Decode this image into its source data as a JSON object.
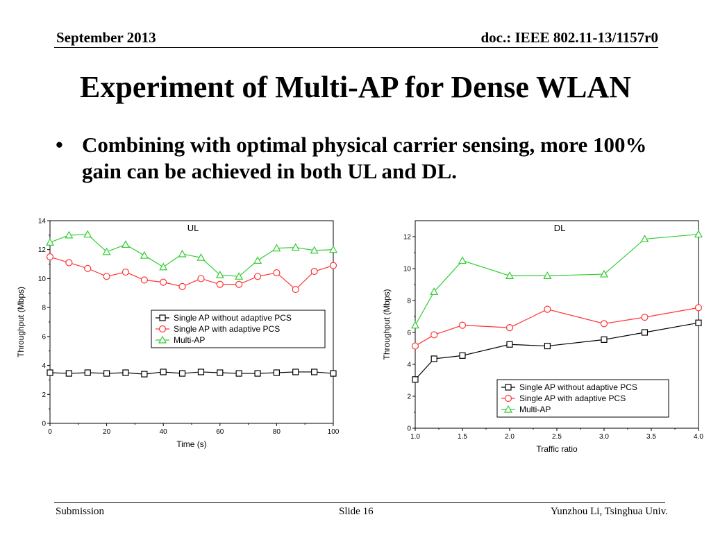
{
  "header": {
    "date": "September 2013",
    "doc": "doc.: IEEE 802.11-13/1157r0"
  },
  "title": "Experiment of Multi-AP for Dense WLAN",
  "bullet": {
    "marker": "•",
    "text": "Combining with optimal physical carrier sensing, more 100% gain can be achieved in both UL and DL."
  },
  "chart_data": [
    {
      "type": "line",
      "annotation": "UL",
      "xlabel": "Time (s)",
      "ylabel": "Throughput (Mbps)",
      "xlim": [
        0,
        100
      ],
      "ylim": [
        0,
        14
      ],
      "xticks": [
        0,
        20,
        40,
        60,
        80,
        100
      ],
      "yticks": [
        0,
        2,
        4,
        6,
        8,
        10,
        12,
        14
      ],
      "grid": false,
      "legend_position": "center-right",
      "x": [
        0,
        6.7,
        13.3,
        20,
        26.7,
        33.3,
        40,
        46.7,
        53.3,
        60,
        66.7,
        73.3,
        80,
        86.7,
        93.3,
        100
      ],
      "series": [
        {
          "name": "Single AP without adaptive PCS",
          "color": "#000000",
          "marker": "square",
          "values": [
            3.5,
            3.45,
            3.5,
            3.45,
            3.5,
            3.4,
            3.55,
            3.45,
            3.55,
            3.5,
            3.45,
            3.45,
            3.5,
            3.55,
            3.55,
            3.45
          ]
        },
        {
          "name": "Single AP with adaptive PCS",
          "color": "#ff3333",
          "marker": "circle",
          "values": [
            11.5,
            11.1,
            10.7,
            10.15,
            10.45,
            9.9,
            9.75,
            9.45,
            10.0,
            9.6,
            9.6,
            10.15,
            10.4,
            9.25,
            10.5,
            10.9
          ]
        },
        {
          "name": "Multi-AP",
          "color": "#33cc33",
          "marker": "triangle",
          "values": [
            12.5,
            13.0,
            13.05,
            11.85,
            12.35,
            11.6,
            10.8,
            11.7,
            11.45,
            10.25,
            10.15,
            11.25,
            12.1,
            12.15,
            11.95,
            12.0
          ]
        }
      ]
    },
    {
      "type": "line",
      "annotation": "DL",
      "xlabel": "Traffic ratio",
      "ylabel": "Throughput (Mbps)",
      "xlim": [
        1.0,
        4.0
      ],
      "ylim": [
        0,
        13
      ],
      "xticks": [
        "1.0",
        "1.5",
        "2.0",
        "2.5",
        "3.0",
        "3.5",
        "4.0"
      ],
      "yticks": [
        0,
        2,
        4,
        6,
        8,
        10,
        12
      ],
      "grid": false,
      "legend_position": "bottom-right",
      "x": [
        1.0,
        1.2,
        1.5,
        2.0,
        2.4,
        3.0,
        3.43,
        4.0
      ],
      "series": [
        {
          "name": "Single AP without adaptive PCS",
          "color": "#000000",
          "marker": "square",
          "values": [
            3.05,
            4.35,
            4.55,
            5.25,
            5.15,
            5.55,
            6.0,
            6.6
          ]
        },
        {
          "name": "Single AP with adaptive PCS",
          "color": "#ff3333",
          "marker": "circle",
          "values": [
            5.15,
            5.85,
            6.45,
            6.3,
            7.45,
            6.55,
            6.95,
            7.55
          ]
        },
        {
          "name": "Multi-AP",
          "color": "#33cc33",
          "marker": "triangle",
          "values": [
            6.45,
            8.55,
            10.5,
            9.55,
            9.55,
            9.65,
            11.85,
            12.15
          ]
        }
      ]
    }
  ],
  "footer": {
    "left": "Submission",
    "slide": "Slide 16",
    "author": "Yunzhou Li, Tsinghua Univ."
  }
}
